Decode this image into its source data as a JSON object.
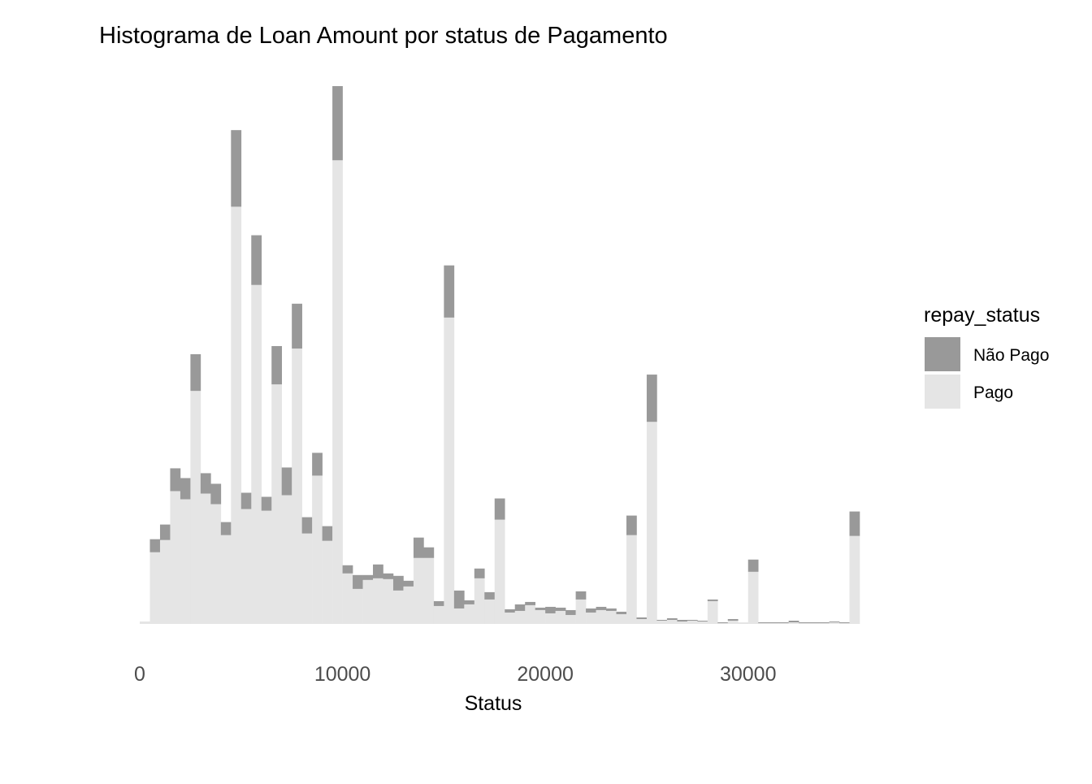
{
  "chart_data": {
    "type": "bar",
    "stacked": true,
    "title": "Histograma de Loan Amount por status de Pagamento",
    "xlabel": "Status",
    "ylabel": "",
    "xlim": [
      0,
      35500
    ],
    "x_ticks": [
      0,
      10000,
      20000,
      30000
    ],
    "x_tick_labels": [
      "0",
      "10000",
      "20000",
      "30000"
    ],
    "ylim": [
      0,
      660
    ],
    "bin_width": 500,
    "grid": false,
    "legend": {
      "title": "repay_status",
      "position": "right",
      "entries": [
        {
          "label": "Não Pago",
          "color": "#999999"
        },
        {
          "label": "Pago",
          "color": "#e5e5e5"
        }
      ]
    },
    "series": [
      {
        "name": "Pago",
        "color": "#e5e5e5",
        "x": [
          250,
          750,
          1250,
          1750,
          2250,
          2750,
          3250,
          3750,
          4250,
          4750,
          5250,
          5750,
          6250,
          6750,
          7250,
          7750,
          8250,
          8750,
          9250,
          9750,
          10250,
          10750,
          11250,
          11750,
          12250,
          12750,
          13250,
          13750,
          14250,
          14750,
          15250,
          15750,
          16250,
          16750,
          17250,
          17750,
          18250,
          18750,
          19250,
          19750,
          20250,
          20750,
          21250,
          21750,
          22250,
          22750,
          23250,
          23750,
          24250,
          24750,
          25250,
          25750,
          26250,
          26750,
          27250,
          27750,
          28250,
          28750,
          29250,
          29750,
          30250,
          30750,
          31250,
          31750,
          32250,
          32750,
          33250,
          33750,
          34250,
          34750,
          35250
        ],
        "values": [
          3,
          88,
          103,
          163,
          153,
          286,
          160,
          147,
          109,
          512,
          141,
          416,
          139,
          294,
          158,
          338,
          111,
          182,
          102,
          569,
          62,
          43,
          54,
          56,
          55,
          41,
          46,
          81,
          81,
          22,
          376,
          19,
          24,
          56,
          30,
          128,
          14,
          16,
          23,
          17,
          13,
          16,
          11,
          30,
          14,
          17,
          16,
          12,
          109,
          6,
          248,
          4,
          5,
          3,
          4,
          3,
          28,
          1,
          4,
          2,
          64,
          1,
          1,
          1,
          2,
          1,
          1,
          1,
          2,
          1,
          108
        ]
      },
      {
        "name": "Não Pago",
        "color": "#999999",
        "x": [
          250,
          750,
          1250,
          1750,
          2250,
          2750,
          3250,
          3750,
          4250,
          4750,
          5250,
          5750,
          6250,
          6750,
          7250,
          7750,
          8250,
          8750,
          9250,
          9750,
          10250,
          10750,
          11250,
          11750,
          12250,
          12750,
          13250,
          13750,
          14250,
          14750,
          15250,
          15750,
          16250,
          16750,
          17250,
          17750,
          18250,
          18750,
          19250,
          19750,
          20250,
          20750,
          21250,
          21750,
          22250,
          22750,
          23250,
          23750,
          24250,
          24750,
          25250,
          25750,
          26250,
          26750,
          27250,
          27750,
          28250,
          28750,
          29250,
          29750,
          30250,
          30750,
          31250,
          31750,
          32250,
          32750,
          33250,
          33750,
          34250,
          34750,
          35250
        ],
        "values": [
          0,
          16,
          19,
          28,
          26,
          45,
          25,
          25,
          16,
          94,
          20,
          61,
          17,
          47,
          34,
          55,
          20,
          28,
          18,
          91,
          10,
          17,
          6,
          17,
          7,
          18,
          7,
          25,
          13,
          6,
          64,
          22,
          5,
          12,
          9,
          26,
          4,
          8,
          4,
          3,
          8,
          4,
          6,
          10,
          5,
          4,
          3,
          3,
          24,
          2,
          58,
          1,
          2,
          2,
          1,
          1,
          2,
          1,
          2,
          0,
          15,
          1,
          1,
          1,
          2,
          1,
          1,
          1,
          1,
          1,
          30
        ]
      }
    ]
  }
}
